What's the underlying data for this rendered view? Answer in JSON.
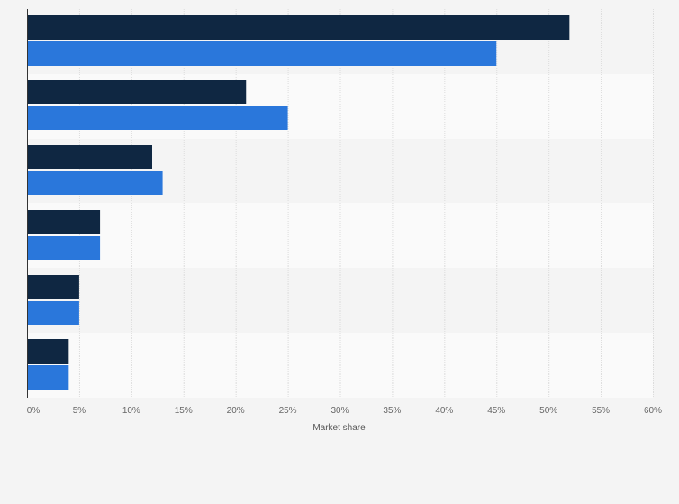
{
  "chart_data": {
    "type": "bar",
    "orientation": "horizontal",
    "categories": [
      "",
      "",
      "",
      "",
      "",
      ""
    ],
    "series": [
      {
        "values": [
          52,
          21,
          12,
          7,
          5,
          4
        ],
        "color": "#0f2742"
      },
      {
        "values": [
          45,
          25,
          13,
          7,
          5,
          4
        ],
        "color": "#2a77db"
      }
    ],
    "xlabel": "Market share",
    "xlim": [
      0,
      60
    ],
    "xticks": [
      0,
      5,
      10,
      15,
      20,
      25,
      30,
      35,
      40,
      45,
      50,
      55,
      60
    ],
    "xtick_labels": [
      "0%",
      "5%",
      "10%",
      "15%",
      "20%",
      "25%",
      "30%",
      "35%",
      "40%",
      "45%",
      "50%",
      "55%",
      "60%"
    ],
    "grid": true,
    "legend": false,
    "band_colors": [
      "#f4f4f4",
      "#fafafa"
    ]
  }
}
